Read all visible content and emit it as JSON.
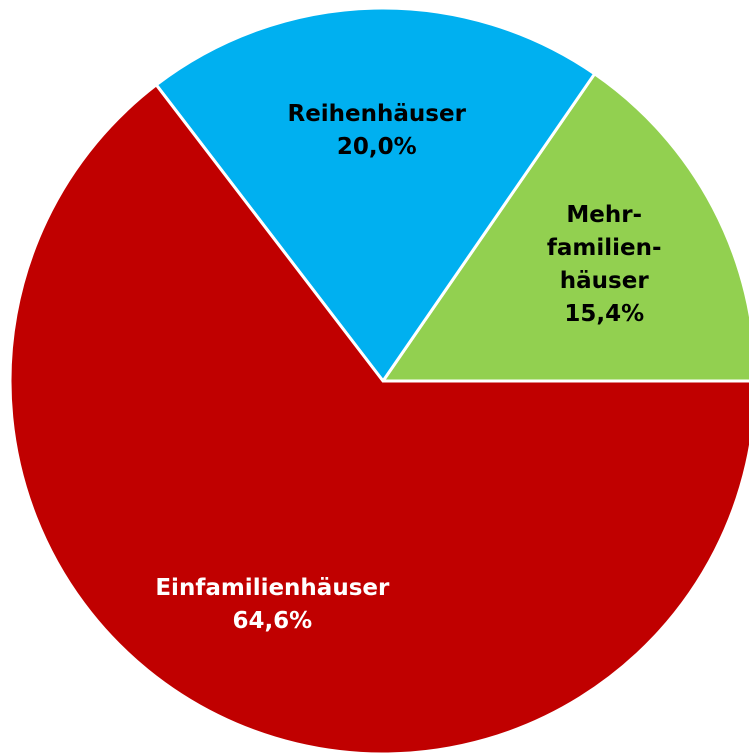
{
  "chart_data": {
    "type": "pie",
    "categories": [
      "Mehr-\nfamilien-\nhäuser",
      "Reihenhäuser",
      "Einfamilienhäuser"
    ],
    "values": [
      15.4,
      20.0,
      64.6
    ],
    "value_labels": [
      "15,4%",
      "20,0%",
      "64,6%"
    ],
    "colors": [
      "#92d050",
      "#00b0f0",
      "#c00000"
    ],
    "label_colors": [
      "#000000",
      "#000000",
      "#ffffff"
    ]
  }
}
